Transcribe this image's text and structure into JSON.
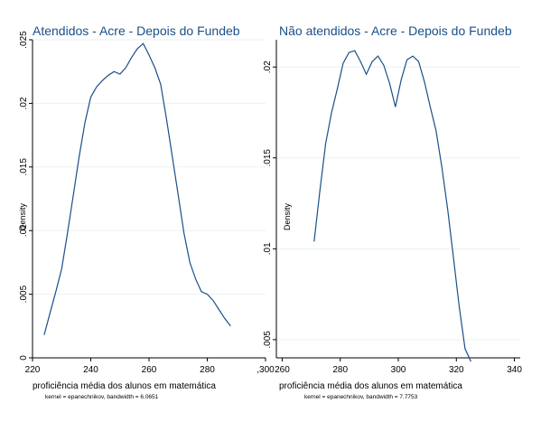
{
  "chart_data": [
    {
      "type": "line",
      "title": "Atendidos - Acre - Depois do Fundeb",
      "xlabel": "proficiência média dos alunos em matemática",
      "ylabel": "Density",
      "note": "kernel = epanechnikov, bandwidth = 6.0651",
      "xlim": [
        220,
        300
      ],
      "ylim": [
        0,
        0.025
      ],
      "x_ticks": [
        220,
        240,
        260,
        280,
        300
      ],
      "x_tick_labels": [
        "220",
        "240",
        "260",
        "280",
        ",300"
      ],
      "y_ticks": [
        0,
        0.005,
        0.01,
        0.015,
        0.02,
        0.025
      ],
      "y_tick_labels": [
        "0",
        ".005",
        ".01",
        ".015",
        ".02",
        ".025"
      ],
      "color": "#1a4f8a",
      "x": [
        224,
        226,
        228,
        230,
        232,
        234,
        236,
        238,
        240,
        242,
        244,
        246,
        248,
        250,
        252,
        254,
        256,
        258,
        260,
        262,
        264,
        266,
        268,
        270,
        272,
        274,
        276,
        278,
        280,
        282,
        284,
        286,
        288
      ],
      "y": [
        0.0018,
        0.0035,
        0.0052,
        0.007,
        0.0098,
        0.0128,
        0.0158,
        0.0185,
        0.0205,
        0.0213,
        0.0218,
        0.0222,
        0.0225,
        0.0223,
        0.0228,
        0.0236,
        0.0243,
        0.0247,
        0.0238,
        0.0228,
        0.0215,
        0.0188,
        0.0158,
        0.0128,
        0.0098,
        0.0075,
        0.0062,
        0.0052,
        0.005,
        0.0045,
        0.0038,
        0.0031,
        0.0025
      ]
    },
    {
      "type": "line",
      "title": "Não atendidos - Acre - Depois do Fundeb",
      "xlabel": "proficiência média dos alunos em matemática",
      "ylabel": "Density",
      "note": "kernel = epanechnikov, bandwidth = 7.7753",
      "xlim": [
        258,
        342
      ],
      "ylim": [
        0.004,
        0.0215
      ],
      "x_ticks": [
        260,
        280,
        300,
        320,
        340
      ],
      "x_tick_labels": [
        "260",
        "280",
        "300",
        "320",
        "340"
      ],
      "y_ticks": [
        0.005,
        0.01,
        0.015,
        0.02
      ],
      "y_tick_labels": [
        ".005",
        ".01",
        ".015",
        ".02"
      ],
      "color": "#1a4f8a",
      "x": [
        271,
        273,
        275,
        277,
        279,
        281,
        283,
        285,
        287,
        289,
        291,
        293,
        295,
        297,
        299,
        301,
        303,
        305,
        307,
        309,
        311,
        313,
        315,
        317,
        319,
        321,
        323,
        325
      ],
      "y": [
        0.0104,
        0.0132,
        0.0158,
        0.0175,
        0.0188,
        0.0202,
        0.0208,
        0.0209,
        0.0203,
        0.0196,
        0.0203,
        0.0206,
        0.0201,
        0.0191,
        0.0178,
        0.0193,
        0.0204,
        0.0206,
        0.0203,
        0.0192,
        0.0178,
        0.0165,
        0.0145,
        0.0122,
        0.0095,
        0.0068,
        0.0045,
        0.0038
      ]
    }
  ]
}
